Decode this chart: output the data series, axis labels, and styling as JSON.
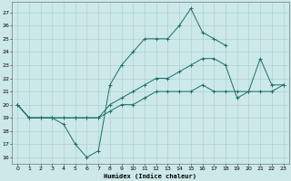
{
  "xlabel": "Humidex (Indice chaleur)",
  "bg_color": "#cce8e8",
  "grid_color": "#aacccc",
  "line_color": "#1a6e6a",
  "xlim": [
    -0.5,
    23.5
  ],
  "ylim": [
    15.5,
    27.8
  ],
  "xticks": [
    0,
    1,
    2,
    3,
    4,
    5,
    6,
    7,
    8,
    9,
    10,
    11,
    12,
    13,
    14,
    15,
    16,
    17,
    18,
    19,
    20,
    21,
    22,
    23
  ],
  "yticks": [
    16,
    17,
    18,
    19,
    20,
    21,
    22,
    23,
    24,
    25,
    26,
    27
  ],
  "line1_x": [
    0,
    1,
    2,
    3,
    4,
    5,
    6,
    7,
    8,
    9,
    10,
    11,
    12,
    13,
    14,
    15,
    16,
    17,
    18
  ],
  "line1_y": [
    20,
    19,
    19,
    19,
    18.5,
    17,
    16,
    16.5,
    21.5,
    23,
    24,
    25,
    25,
    25,
    26,
    27.3,
    25.5,
    25,
    24.5
  ],
  "line2_x": [
    0,
    1,
    2,
    3,
    4,
    5,
    6,
    7,
    8,
    9,
    10,
    11,
    12,
    13,
    14,
    15,
    16,
    17,
    18,
    19,
    20,
    21,
    22,
    23
  ],
  "line2_y": [
    20,
    19,
    19,
    19,
    19,
    19,
    19,
    19,
    20,
    20.5,
    21,
    21.5,
    22,
    22,
    22.5,
    23,
    23.5,
    23.5,
    23,
    20.5,
    21,
    23.5,
    21.5,
    21.5
  ],
  "line3_x": [
    0,
    1,
    2,
    3,
    4,
    5,
    6,
    7,
    8,
    9,
    10,
    11,
    12,
    13,
    14,
    15,
    16,
    17,
    18,
    19,
    20,
    21,
    22,
    23
  ],
  "line3_y": [
    20,
    19,
    19,
    19,
    19,
    19,
    19,
    19,
    19.5,
    20,
    20,
    20.5,
    21,
    21,
    21,
    21,
    21.5,
    21,
    21,
    21,
    21,
    21,
    21,
    21.5
  ]
}
